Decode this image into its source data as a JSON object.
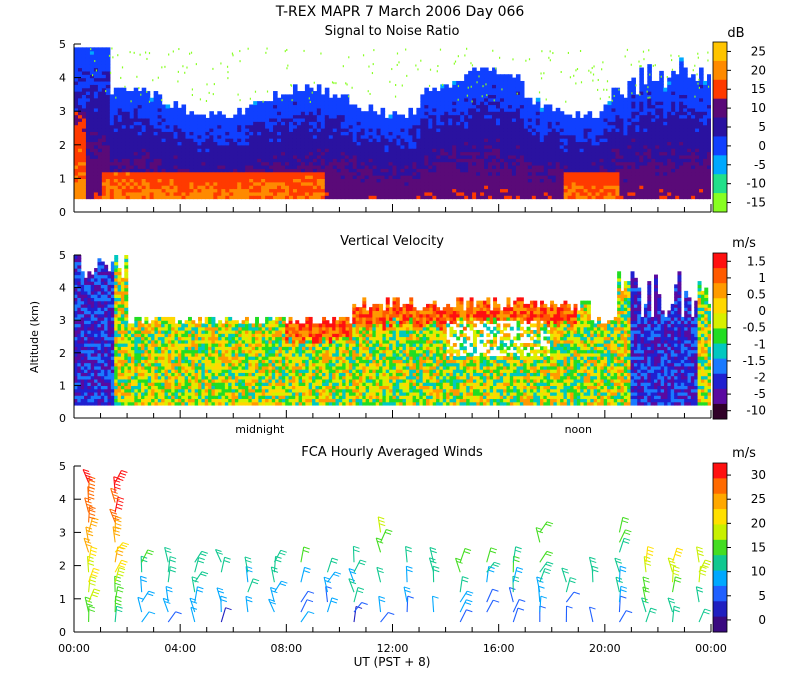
{
  "header": {
    "title": "T-REX   MAPR   7 March 2006 Day 066"
  },
  "colors": {
    "background": "#ffffff",
    "axis": "#000000"
  },
  "chart_data": [
    {
      "type": "heatmap",
      "title": "Signal to Noise Ratio",
      "units": "dB",
      "ylabel": "",
      "ylim": [
        0,
        5
      ],
      "y_ticks": [
        "0",
        "1",
        "2",
        "3",
        "4",
        "5"
      ],
      "x_range_hours": [
        0,
        24
      ],
      "colorbar": {
        "labels": [
          "25",
          "20",
          "15",
          "10",
          "5",
          "0",
          "-5",
          "-10",
          "-15"
        ],
        "colors": [
          "#ffc400",
          "#ff8a00",
          "#ff3a00",
          "#5a0a78",
          "#2a12a0",
          "#1040ff",
          "#00a8ff",
          "#22e08a",
          "#88ff22"
        ]
      }
    },
    {
      "type": "heatmap",
      "title": "Vertical Velocity",
      "units": "m/s",
      "ylabel": "Altitude (km)",
      "ylim": [
        0,
        5
      ],
      "y_ticks": [
        "0",
        "1",
        "2",
        "3",
        "4",
        "5"
      ],
      "x_range_hours": [
        0,
        24
      ],
      "x_annotations": [
        {
          "label": "midnight",
          "hour": 7
        },
        {
          "label": "noon",
          "hour": 19
        }
      ],
      "colorbar": {
        "labels": [
          "1.5",
          "1",
          "0.5",
          "0",
          "-0.5",
          "-1",
          "-1.5",
          "-2",
          "-5",
          "-10"
        ],
        "colors": [
          "#ff1010",
          "#ff5a00",
          "#ff9a00",
          "#ffd800",
          "#d8f000",
          "#22dd22",
          "#00c8c0",
          "#1a7aff",
          "#2020d0",
          "#5a0aa0",
          "#300028"
        ]
      }
    },
    {
      "type": "barbs",
      "title": "FCA Hourly Averaged Winds",
      "units": "m/s",
      "xlabel": "UT  (PST + 8)",
      "ylabel": "",
      "ylim": [
        0,
        5
      ],
      "y_ticks": [
        "0",
        "1",
        "2",
        "3",
        "4",
        "5"
      ],
      "x_ticks": [
        "00:00",
        "04:00",
        "08:00",
        "12:00",
        "16:00",
        "20:00",
        "00:00"
      ],
      "x_range_hours": [
        0,
        24
      ],
      "colorbar": {
        "labels": [
          "30",
          "25",
          "20",
          "15",
          "10",
          "5",
          "0"
        ],
        "colors": [
          "#ff1010",
          "#ff6a00",
          "#ffa800",
          "#ffe000",
          "#c8f000",
          "#44dd22",
          "#10c890",
          "#00a8ff",
          "#2060ff",
          "#2020c0",
          "#3a0a80"
        ]
      }
    }
  ]
}
